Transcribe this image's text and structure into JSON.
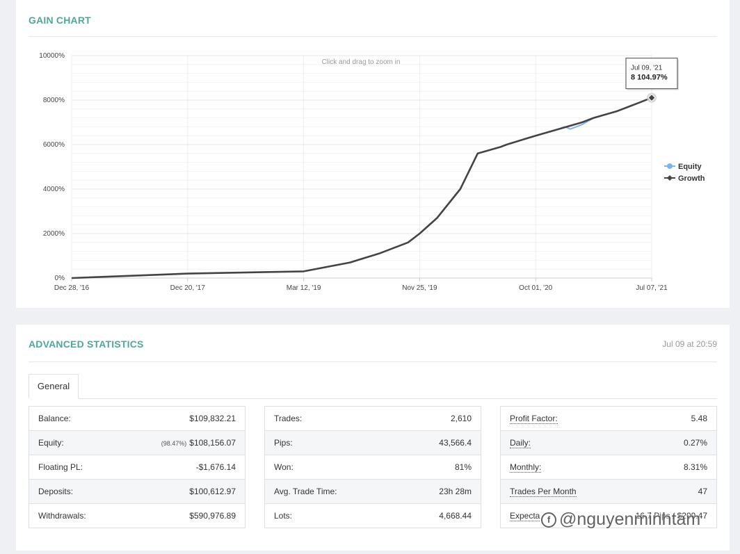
{
  "gain": {
    "title": "GAIN CHART",
    "zoom_hint": "Click and drag to zoom in",
    "tooltip": {
      "date": "Jul 09, '21",
      "value": "8 104.97%"
    },
    "legend": [
      {
        "name": "Equity",
        "color": "#7cb5ec"
      },
      {
        "name": "Growth",
        "color": "#434348"
      }
    ]
  },
  "chart_data": {
    "type": "line",
    "y_ticks": [
      "0%",
      "2000%",
      "4000%",
      "6000%",
      "8000%",
      "10000%"
    ],
    "x_ticks": [
      "Dec 28, '16",
      "Dec 20, '17",
      "Mar 12, '19",
      "Nov 25, '19",
      "Oct 01, '20",
      "Jul 07, '21"
    ],
    "ylim": [
      0,
      10000
    ],
    "grid": true,
    "legend_position": "right",
    "series": [
      {
        "name": "Growth",
        "color": "#434348",
        "x": [
          0,
          0.2,
          0.4,
          0.48,
          0.53,
          0.58,
          0.6,
          0.63,
          0.67,
          0.7,
          0.74,
          0.75,
          0.8,
          0.84,
          0.88,
          0.9,
          0.94,
          0.96,
          0.98,
          1.0
        ],
        "values": [
          0,
          200,
          300,
          700,
          1100,
          1600,
          2000,
          2700,
          4000,
          5600,
          5900,
          6000,
          6400,
          6700,
          7000,
          7200,
          7500,
          7700,
          7900,
          8104.97
        ]
      },
      {
        "name": "Equity",
        "color": "#7cb5ec",
        "x": [
          0,
          0.2,
          0.4,
          0.48,
          0.53,
          0.58,
          0.6,
          0.63,
          0.67,
          0.7,
          0.74,
          0.75,
          0.8,
          0.84,
          0.85,
          0.86,
          0.88,
          0.9,
          0.94,
          0.96,
          0.98,
          1.0
        ],
        "values": [
          0,
          200,
          300,
          700,
          1100,
          1600,
          2000,
          2700,
          4000,
          5600,
          5900,
          6000,
          6400,
          6700,
          6800,
          6700,
          6900,
          7200,
          7500,
          7700,
          7900,
          8104.97
        ]
      }
    ]
  },
  "stats": {
    "title": "ADVANCED STATISTICS",
    "date": "Jul 09 at 20:59",
    "tab": "General",
    "col1": [
      {
        "label": "Balance:",
        "value": "$109,832.21"
      },
      {
        "label": "Equity:",
        "note": "(98.47%)",
        "value": "$108,156.07"
      },
      {
        "label": "Floating PL:",
        "value": "-$1,676.14"
      },
      {
        "label": "Deposits:",
        "value": "$100,612.97"
      },
      {
        "label": "Withdrawals:",
        "value": "$590,976.89"
      }
    ],
    "col2": [
      {
        "label": "Trades:",
        "value": "2,610"
      },
      {
        "label": "Pips:",
        "value": "43,566.4"
      },
      {
        "label": "Won:",
        "value": "81%"
      },
      {
        "label": "Avg. Trade Time:",
        "value": "23h 28m"
      },
      {
        "label": "Lots:",
        "value": "4,668.44"
      }
    ],
    "col3": [
      {
        "label": "Profit Factor:",
        "value": "5.48"
      },
      {
        "label": "Daily:",
        "value": "0.27%"
      },
      {
        "label": "Monthly:",
        "value": "8.31%"
      },
      {
        "label": "Trades Per Month",
        "value": "47"
      },
      {
        "label": "Expecta",
        "value": "16.7 Pips / $209.47"
      }
    ]
  },
  "watermark": {
    "icon": "f",
    "text": "@nguyenminhtam"
  }
}
